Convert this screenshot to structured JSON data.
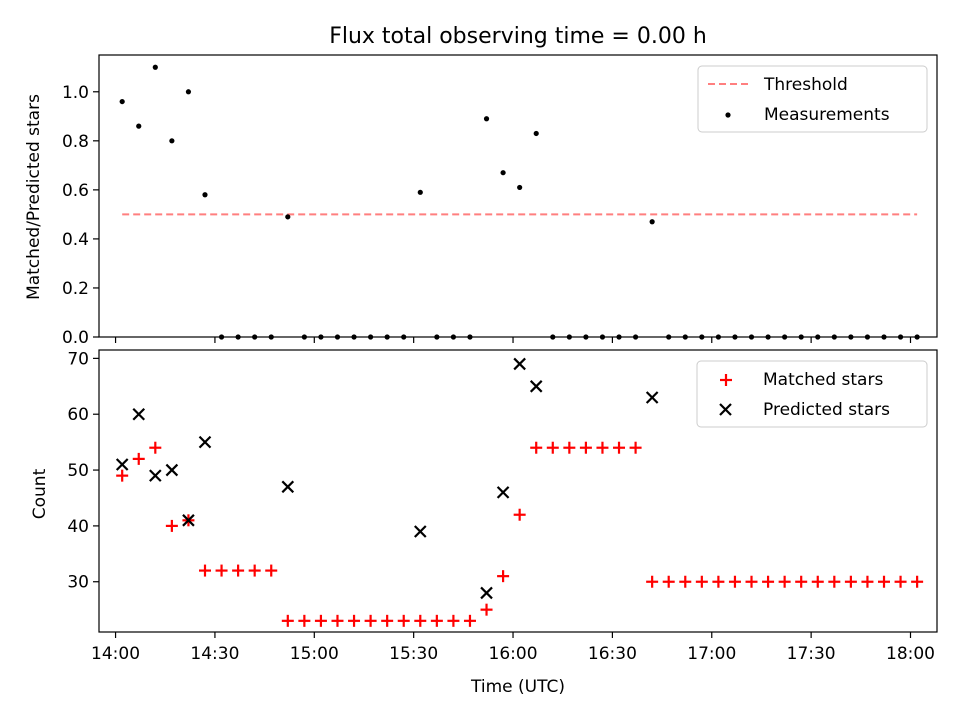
{
  "title": "Flux total observing time = 0.00 h",
  "colors": {
    "threshold": "#ff7f7f",
    "measurement": "#000000",
    "matched": "#ff0000",
    "predicted": "#000000"
  },
  "chart_data": [
    {
      "type": "scatter",
      "ylabel": "Matched/Predicted stars",
      "xlabel": "",
      "ylim": [
        0,
        1.15
      ],
      "yticks": [
        "0.0",
        "0.2",
        "0.4",
        "0.6",
        "0.8",
        "1.0"
      ],
      "legend": {
        "placement": "upper right",
        "entries": [
          "Threshold",
          "Measurements"
        ]
      },
      "threshold": {
        "name": "Threshold",
        "y": 0.5,
        "x_start": "14:02",
        "x_end": "18:02"
      },
      "series": [
        {
          "name": "Measurements",
          "points": [
            [
              "14:02",
              0.96
            ],
            [
              "14:07",
              0.86
            ],
            [
              "14:12",
              1.1
            ],
            [
              "14:17",
              0.8
            ],
            [
              "14:22",
              1.0
            ],
            [
              "14:27",
              0.58
            ],
            [
              "14:32",
              0
            ],
            [
              "14:37",
              0
            ],
            [
              "14:42",
              0
            ],
            [
              "14:47",
              0
            ],
            [
              "14:52",
              0.49
            ],
            [
              "14:57",
              0
            ],
            [
              "15:02",
              0
            ],
            [
              "15:07",
              0
            ],
            [
              "15:12",
              0
            ],
            [
              "15:17",
              0
            ],
            [
              "15:22",
              0
            ],
            [
              "15:27",
              0
            ],
            [
              "15:32",
              0.59
            ],
            [
              "15:37",
              0
            ],
            [
              "15:42",
              0
            ],
            [
              "15:47",
              0
            ],
            [
              "15:52",
              0.89
            ],
            [
              "15:57",
              0.67
            ],
            [
              "16:02",
              0.61
            ],
            [
              "16:07",
              0.83
            ],
            [
              "16:12",
              0
            ],
            [
              "16:17",
              0
            ],
            [
              "16:22",
              0
            ],
            [
              "16:27",
              0
            ],
            [
              "16:32",
              0
            ],
            [
              "16:37",
              0
            ],
            [
              "16:42",
              0.47
            ],
            [
              "16:47",
              0
            ],
            [
              "16:52",
              0
            ],
            [
              "16:57",
              0
            ],
            [
              "17:02",
              0
            ],
            [
              "17:07",
              0
            ],
            [
              "17:12",
              0
            ],
            [
              "17:17",
              0
            ],
            [
              "17:22",
              0
            ],
            [
              "17:27",
              0
            ],
            [
              "17:32",
              0
            ],
            [
              "17:37",
              0
            ],
            [
              "17:42",
              0
            ],
            [
              "17:47",
              0
            ],
            [
              "17:52",
              0
            ],
            [
              "17:57",
              0
            ],
            [
              "18:02",
              0
            ]
          ]
        }
      ]
    },
    {
      "type": "scatter",
      "ylabel": "Count",
      "xlabel": "Time (UTC)",
      "ylim": [
        21,
        71.5
      ],
      "xlim": [
        "13:55",
        "18:08"
      ],
      "yticks": [
        "30",
        "40",
        "50",
        "60",
        "70"
      ],
      "xticks": [
        "14:00",
        "14:30",
        "15:00",
        "15:30",
        "16:00",
        "16:30",
        "17:00",
        "17:30",
        "18:00"
      ],
      "legend": {
        "placement": "upper right",
        "entries": [
          "Matched stars",
          "Predicted stars"
        ]
      },
      "series": [
        {
          "name": "Matched stars",
          "marker": "plus",
          "points": [
            [
              "14:02",
              49
            ],
            [
              "14:07",
              52
            ],
            [
              "14:12",
              54
            ],
            [
              "14:17",
              40
            ],
            [
              "14:22",
              41
            ],
            [
              "14:27",
              32
            ],
            [
              "14:32",
              32
            ],
            [
              "14:37",
              32
            ],
            [
              "14:42",
              32
            ],
            [
              "14:47",
              32
            ],
            [
              "14:52",
              23
            ],
            [
              "14:57",
              23
            ],
            [
              "15:02",
              23
            ],
            [
              "15:07",
              23
            ],
            [
              "15:12",
              23
            ],
            [
              "15:17",
              23
            ],
            [
              "15:22",
              23
            ],
            [
              "15:27",
              23
            ],
            [
              "15:32",
              23
            ],
            [
              "15:37",
              23
            ],
            [
              "15:42",
              23
            ],
            [
              "15:47",
              23
            ],
            [
              "15:52",
              25
            ],
            [
              "15:57",
              31
            ],
            [
              "16:02",
              42
            ],
            [
              "16:07",
              54
            ],
            [
              "16:12",
              54
            ],
            [
              "16:17",
              54
            ],
            [
              "16:22",
              54
            ],
            [
              "16:27",
              54
            ],
            [
              "16:32",
              54
            ],
            [
              "16:37",
              54
            ],
            [
              "16:42",
              30
            ],
            [
              "16:47",
              30
            ],
            [
              "16:52",
              30
            ],
            [
              "16:57",
              30
            ],
            [
              "17:02",
              30
            ],
            [
              "17:07",
              30
            ],
            [
              "17:12",
              30
            ],
            [
              "17:17",
              30
            ],
            [
              "17:22",
              30
            ],
            [
              "17:27",
              30
            ],
            [
              "17:32",
              30
            ],
            [
              "17:37",
              30
            ],
            [
              "17:42",
              30
            ],
            [
              "17:47",
              30
            ],
            [
              "17:52",
              30
            ],
            [
              "17:57",
              30
            ],
            [
              "18:02",
              30
            ]
          ]
        },
        {
          "name": "Predicted stars",
          "marker": "x",
          "points": [
            [
              "14:02",
              51
            ],
            [
              "14:07",
              60
            ],
            [
              "14:12",
              49
            ],
            [
              "14:17",
              50
            ],
            [
              "14:22",
              41
            ],
            [
              "14:27",
              55
            ],
            [
              "14:52",
              47
            ],
            [
              "15:32",
              39
            ],
            [
              "15:52",
              28
            ],
            [
              "15:57",
              46
            ],
            [
              "16:02",
              69
            ],
            [
              "16:07",
              65
            ],
            [
              "16:42",
              63
            ]
          ]
        }
      ]
    }
  ]
}
